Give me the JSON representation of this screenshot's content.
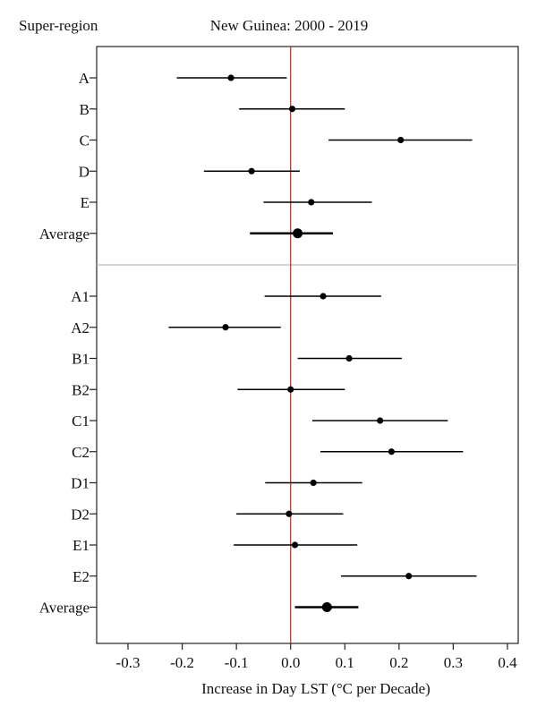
{
  "chart_data": {
    "type": "scatter",
    "title": "New Guinea: 2000 - 2019",
    "ylabel": "Super-region",
    "xlabel": "Increase in Day LST (°C per Decade)",
    "xlim": [
      -0.36,
      0.42
    ],
    "xticks": [
      -0.3,
      -0.2,
      -0.1,
      0.0,
      0.1,
      0.2,
      0.3,
      0.4
    ],
    "xtick_labels": [
      "-0.3",
      "-0.2",
      "-0.1",
      "0.0",
      "0.1",
      "0.2",
      "0.3",
      "0.4"
    ],
    "reference_x": 0.0,
    "reference_color": "#c0392b",
    "separator_color": "#bbbbbb",
    "point_color": "#000000",
    "panels": [
      {
        "rows": [
          {
            "label": "A",
            "value": -0.11,
            "low": -0.21,
            "high": -0.007,
            "emphasis": false
          },
          {
            "label": "B",
            "value": 0.003,
            "low": -0.095,
            "high": 0.1,
            "emphasis": false
          },
          {
            "label": "C",
            "value": 0.203,
            "low": 0.07,
            "high": 0.335,
            "emphasis": false
          },
          {
            "label": "D",
            "value": -0.072,
            "low": -0.16,
            "high": 0.017,
            "emphasis": false
          },
          {
            "label": "E",
            "value": 0.038,
            "low": -0.05,
            "high": 0.15,
            "emphasis": false
          },
          {
            "label": "Average",
            "value": 0.013,
            "low": -0.075,
            "high": 0.078,
            "emphasis": true
          }
        ]
      },
      {
        "rows": [
          {
            "label": "A1",
            "value": 0.06,
            "low": -0.048,
            "high": 0.167,
            "emphasis": false
          },
          {
            "label": "A2",
            "value": -0.12,
            "low": -0.225,
            "high": -0.018,
            "emphasis": false
          },
          {
            "label": "B1",
            "value": 0.108,
            "low": 0.013,
            "high": 0.205,
            "emphasis": false
          },
          {
            "label": "B2",
            "value": 0.0,
            "low": -0.098,
            "high": 0.1,
            "emphasis": false
          },
          {
            "label": "C1",
            "value": 0.165,
            "low": 0.04,
            "high": 0.29,
            "emphasis": false
          },
          {
            "label": "C2",
            "value": 0.186,
            "low": 0.055,
            "high": 0.318,
            "emphasis": false
          },
          {
            "label": "D1",
            "value": 0.042,
            "low": -0.047,
            "high": 0.132,
            "emphasis": false
          },
          {
            "label": "D2",
            "value": -0.003,
            "low": -0.1,
            "high": 0.097,
            "emphasis": false
          },
          {
            "label": "E1",
            "value": 0.008,
            "low": -0.105,
            "high": 0.123,
            "emphasis": false
          },
          {
            "label": "E2",
            "value": 0.218,
            "low": 0.093,
            "high": 0.343,
            "emphasis": false
          },
          {
            "label": "Average",
            "value": 0.067,
            "low": 0.008,
            "high": 0.125,
            "emphasis": true
          }
        ]
      }
    ]
  }
}
